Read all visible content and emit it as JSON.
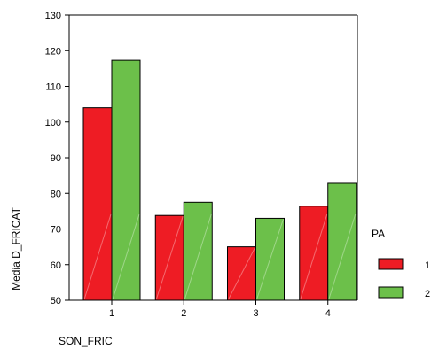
{
  "chart_data": {
    "type": "bar",
    "categories": [
      "1",
      "2",
      "3",
      "4"
    ],
    "series": [
      {
        "name": "1",
        "values": [
          104,
          73.8,
          65,
          76.4
        ],
        "color": "#ee1c24"
      },
      {
        "name": "2",
        "values": [
          117.3,
          77.5,
          73,
          82.8
        ],
        "color": "#6cc04a"
      }
    ],
    "title": "",
    "xlabel": "SON_FRIC",
    "ylabel": "Media D_FRICAT",
    "ylim": [
      50,
      130
    ],
    "yticks": [
      "50",
      "60",
      "70",
      "80",
      "90",
      "100",
      "110",
      "120",
      "130"
    ],
    "grid": false,
    "legend": {
      "title": "PA",
      "placement": "right"
    }
  }
}
